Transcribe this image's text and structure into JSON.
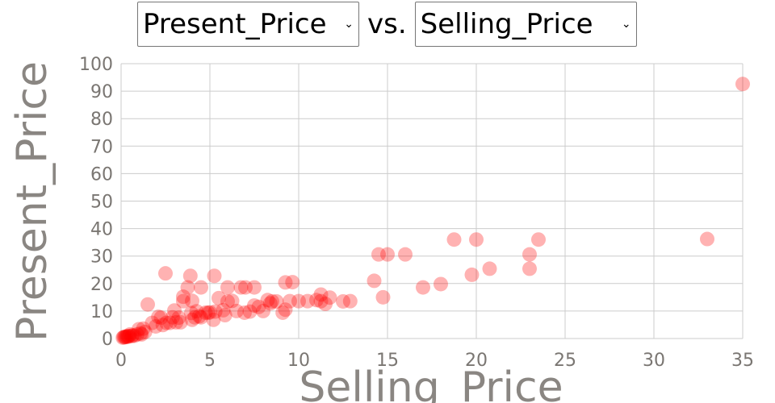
{
  "controls": {
    "y_select": {
      "value": "Present_Price"
    },
    "x_select": {
      "value": "Selling_Price"
    },
    "vs_label": "vs.",
    "caret_icon": "chevron-down-icon"
  },
  "chart_data": {
    "type": "scatter",
    "xlabel": "Selling_Price",
    "ylabel": "Present_Price",
    "xlim": [
      0,
      35
    ],
    "ylim": [
      0,
      100
    ],
    "xticks": [
      0,
      5,
      10,
      15,
      20,
      25,
      30,
      35
    ],
    "yticks": [
      0,
      10,
      20,
      30,
      40,
      50,
      60,
      70,
      80,
      90,
      100
    ],
    "grid": true,
    "marker_color": "#ff0000",
    "marker_opacity": 0.3,
    "points": [
      [
        35,
        92.6
      ],
      [
        33,
        36.2
      ],
      [
        23.5,
        36
      ],
      [
        23,
        30.6
      ],
      [
        23,
        25.4
      ],
      [
        20.75,
        25.4
      ],
      [
        20,
        36
      ],
      [
        19.75,
        23.2
      ],
      [
        18.75,
        36
      ],
      [
        18,
        19.8
      ],
      [
        17,
        18.6
      ],
      [
        16,
        30.6
      ],
      [
        15,
        30.6
      ],
      [
        14.75,
        15
      ],
      [
        14.5,
        30.6
      ],
      [
        14.25,
        21
      ],
      [
        12.9,
        13.6
      ],
      [
        12.5,
        13.5
      ],
      [
        11.75,
        14.9
      ],
      [
        11.5,
        12.6
      ],
      [
        11.25,
        16
      ],
      [
        11.25,
        13.6
      ],
      [
        11,
        14
      ],
      [
        10.5,
        13.6
      ],
      [
        10,
        13.6
      ],
      [
        9.65,
        20.5
      ],
      [
        9.5,
        13.6
      ],
      [
        9.25,
        20.4
      ],
      [
        9.25,
        10.5
      ],
      [
        9.1,
        9.4
      ],
      [
        8.75,
        13.5
      ],
      [
        8.5,
        13.5
      ],
      [
        8.4,
        12.8
      ],
      [
        8.25,
        14
      ],
      [
        8,
        10
      ],
      [
        7.75,
        11.5
      ],
      [
        7.5,
        18.6
      ],
      [
        7.5,
        12
      ],
      [
        7.25,
        9.8
      ],
      [
        7,
        18.6
      ],
      [
        6.95,
        9.4
      ],
      [
        6.75,
        18.6
      ],
      [
        6.5,
        10
      ],
      [
        6.25,
        13.7
      ],
      [
        6,
        18.6
      ],
      [
        6,
        13.5
      ],
      [
        5.85,
        8.5
      ],
      [
        5.75,
        10.3
      ],
      [
        5.5,
        14.7
      ],
      [
        5.3,
        9.8
      ],
      [
        5.25,
        22.8
      ],
      [
        5.2,
        6.8
      ],
      [
        5,
        9.5
      ],
      [
        4.9,
        9.4
      ],
      [
        4.75,
        9.4
      ],
      [
        4.5,
        18.6
      ],
      [
        4.5,
        7.7
      ],
      [
        4.4,
        8.1
      ],
      [
        4.25,
        9.9
      ],
      [
        4.15,
        7.7
      ],
      [
        4,
        13.7
      ],
      [
        4,
        6.8
      ],
      [
        3.95,
        9.3
      ],
      [
        3.9,
        22.8
      ],
      [
        3.75,
        18.6
      ],
      [
        3.5,
        15.2
      ],
      [
        3.5,
        13.6
      ],
      [
        3.35,
        5.9
      ],
      [
        3.25,
        7.6
      ],
      [
        3.1,
        5.9
      ],
      [
        3,
        10.2
      ],
      [
        2.9,
        7.7
      ],
      [
        2.75,
        5.7
      ],
      [
        2.55,
        5.7
      ],
      [
        2.5,
        23.7
      ],
      [
        2.35,
        4.9
      ],
      [
        2.25,
        7.6
      ],
      [
        2.1,
        7.9
      ],
      [
        1.95,
        4.4
      ],
      [
        1.75,
        5.7
      ],
      [
        1.5,
        12.4
      ],
      [
        1.35,
        2.4
      ],
      [
        1.25,
        3.6
      ],
      [
        1.15,
        1.5
      ],
      [
        1.1,
        1.9
      ],
      [
        1,
        3.4
      ],
      [
        0.9,
        1.5
      ],
      [
        0.75,
        1
      ],
      [
        0.65,
        1.2
      ],
      [
        0.6,
        0.9
      ],
      [
        0.5,
        1.5
      ],
      [
        0.45,
        0.8
      ],
      [
        0.4,
        0.9
      ],
      [
        0.35,
        0.6
      ],
      [
        0.3,
        0.8
      ],
      [
        0.25,
        0.5
      ],
      [
        0.2,
        0.6
      ],
      [
        0.15,
        0.5
      ],
      [
        0.1,
        0.3
      ]
    ]
  }
}
